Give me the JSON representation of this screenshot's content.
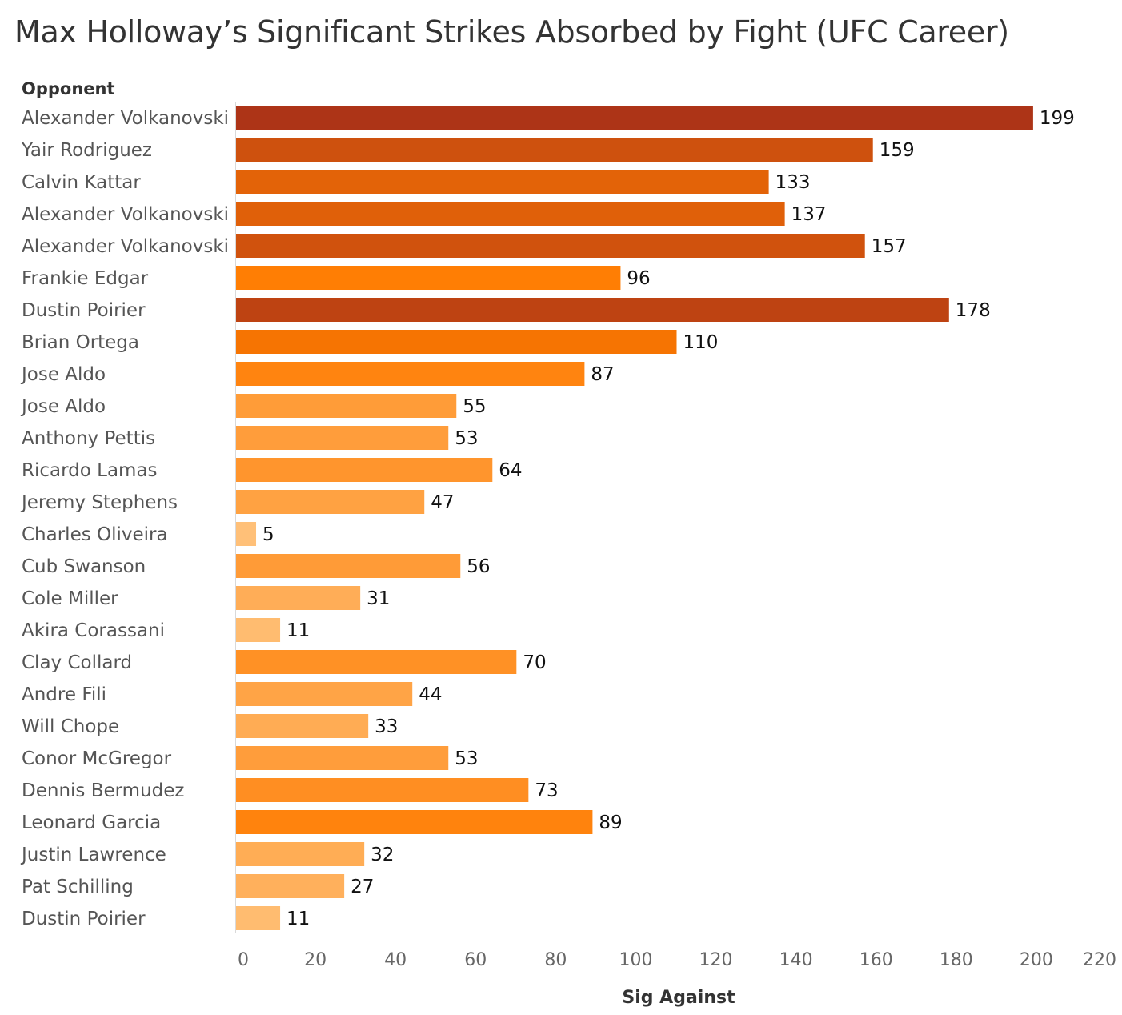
{
  "chart_data": {
    "type": "bar",
    "orientation": "horizontal",
    "title": "Max Holloway’s Significant Strikes Absorbed by Fight (UFC Career)",
    "category_header": "Opponent",
    "xlabel": "Sig Against",
    "xlim": [
      0,
      220
    ],
    "x_ticks": [
      0,
      20,
      40,
      60,
      80,
      100,
      120,
      140,
      160,
      180,
      200,
      220
    ],
    "grid": false,
    "color_scale": {
      "low": "#ffc47e",
      "mid": "#ff7b00",
      "high": "#ad3417"
    },
    "categories": [
      "Alexander Volkanovski",
      "Yair Rodriguez",
      "Calvin Kattar",
      "Alexander Volkanovski",
      "Alexander Volkanovski",
      "Frankie Edgar",
      "Dustin Poirier",
      "Brian Ortega",
      "Jose Aldo",
      "Jose Aldo",
      "Anthony Pettis",
      "Ricardo Lamas",
      "Jeremy Stephens",
      "Charles Oliveira",
      "Cub Swanson",
      "Cole Miller",
      "Akira Corassani",
      "Clay Collard",
      "Andre Fili",
      "Will Chope",
      "Conor McGregor",
      "Dennis Bermudez",
      "Leonard Garcia",
      "Justin Lawrence",
      "Pat Schilling",
      "Dustin Poirier"
    ],
    "values": [
      199,
      159,
      133,
      137,
      157,
      96,
      178,
      110,
      87,
      55,
      53,
      64,
      47,
      5,
      56,
      31,
      11,
      70,
      44,
      33,
      53,
      73,
      89,
      32,
      27,
      11
    ]
  }
}
